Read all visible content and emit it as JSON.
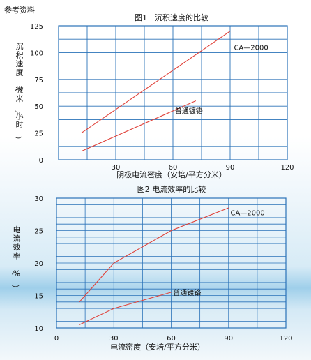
{
  "header": {
    "label": "参考资料"
  },
  "chart_data": [
    {
      "type": "line",
      "title": "图1　沉积速度的比较",
      "xlabel": "阴极电流密度（安培/平方分米）",
      "ylabel": "沉积速度（微米/小时）",
      "x_ticks": [
        "30",
        "60",
        "90",
        "120"
      ],
      "y_ticks": [
        "0",
        "25",
        "50",
        "75",
        "100",
        "125"
      ],
      "xlim": [
        0,
        120
      ],
      "ylim": [
        0,
        125
      ],
      "grid": true,
      "series": [
        {
          "name": "CA—2000",
          "x": [
            12,
            90
          ],
          "y": [
            25,
            120
          ],
          "color": "#e0423a",
          "label_at": [
            92,
            105
          ]
        },
        {
          "name": "普通镀铬",
          "x": [
            12,
            72
          ],
          "y": [
            8,
            55
          ],
          "color": "#e0423a",
          "label_at": [
            61,
            46
          ]
        }
      ]
    },
    {
      "type": "line",
      "title": "图2  电流效率的比较",
      "xlabel": "电流密度（安培/平方分米）",
      "ylabel": "电流效率（%）",
      "x_ticks": [
        "0",
        "30",
        "60",
        "90",
        "120"
      ],
      "y_ticks": [
        "10",
        "15",
        "20",
        "25",
        "30"
      ],
      "xlim": [
        0,
        120
      ],
      "ylim": [
        10,
        30
      ],
      "grid": true,
      "series": [
        {
          "name": "CA—2000",
          "x": [
            12,
            30,
            60,
            90
          ],
          "y": [
            14,
            20,
            25,
            28.5
          ],
          "color": "#e0423a",
          "label_at": [
            91,
            27.8
          ]
        },
        {
          "name": "普通镀铬",
          "x": [
            12,
            30,
            60
          ],
          "y": [
            10.5,
            13,
            15.5
          ],
          "color": "#e0423a",
          "label_at": [
            61,
            15.5
          ]
        }
      ]
    }
  ]
}
